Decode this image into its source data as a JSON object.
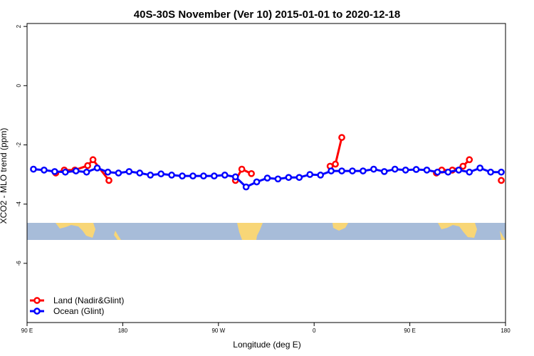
{
  "chart_data": {
    "type": "line",
    "title": "40S-30S November (Ver 10)   2015-01-01 to 2020-12-18",
    "xlabel": "Longitude (deg E)",
    "ylabel": "XCO2 - MLO trend (ppm)",
    "xlim": [
      90,
      540
    ],
    "ylim": [
      -8,
      2.1
    ],
    "x_ticks": [
      {
        "value": 90,
        "label": "90 E"
      },
      {
        "value": 180,
        "label": "180"
      },
      {
        "value": 270,
        "label": "90 W"
      },
      {
        "value": 360,
        "label": "0"
      },
      {
        "value": 450,
        "label": "90 E"
      },
      {
        "value": 540,
        "label": "180"
      }
    ],
    "y_ticks": [
      {
        "value": 2,
        "label": "2"
      },
      {
        "value": 0,
        "label": "0"
      },
      {
        "value": -2,
        "label": "-2"
      },
      {
        "value": -4,
        "label": "-4"
      },
      {
        "value": -6,
        "label": "-6"
      }
    ],
    "legend_position": "bottom-left",
    "series": [
      {
        "name": "Land (Nadir&Glint)",
        "color": "#ff0000",
        "segments": [
          [
            [
              117,
              -2.95
            ],
            [
              125,
              -2.85
            ],
            [
              135,
              -2.85
            ],
            [
              147,
              -2.7
            ],
            [
              152,
              -2.5
            ],
            [
              167,
              -3.2
            ]
          ],
          [
            [
              286,
              -3.2
            ],
            [
              292,
              -2.82
            ],
            [
              301,
              -2.97
            ]
          ],
          [
            [
              375,
              -2.72
            ],
            [
              380,
              -2.65
            ],
            [
              386,
              -1.75
            ]
          ],
          [
            [
              475,
              -2.95
            ],
            [
              480,
              -2.85
            ],
            [
              490,
              -2.85
            ],
            [
              500,
              -2.72
            ],
            [
              506,
              -2.5
            ]
          ],
          [
            [
              536,
              -3.2
            ]
          ]
        ]
      },
      {
        "name": "Ocean (Glint)",
        "color": "#0000ff",
        "segments": [
          [
            [
              96,
              -2.82
            ],
            [
              106,
              -2.85
            ],
            [
              116,
              -2.9
            ],
            [
              126,
              -2.92
            ],
            [
              136,
              -2.88
            ],
            [
              146,
              -2.92
            ],
            [
              156,
              -2.78
            ],
            [
              166,
              -2.92
            ],
            [
              176,
              -2.95
            ],
            [
              186,
              -2.9
            ],
            [
              196,
              -2.95
            ],
            [
              206,
              -3.02
            ],
            [
              216,
              -2.98
            ],
            [
              226,
              -3.02
            ],
            [
              236,
              -3.05
            ],
            [
              246,
              -3.05
            ],
            [
              256,
              -3.05
            ],
            [
              266,
              -3.05
            ],
            [
              276,
              -3.02
            ],
            [
              286,
              -3.08
            ],
            [
              296,
              -3.42
            ],
            [
              306,
              -3.25
            ],
            [
              316,
              -3.12
            ],
            [
              326,
              -3.15
            ],
            [
              336,
              -3.1
            ],
            [
              346,
              -3.1
            ],
            [
              356,
              -3.0
            ],
            [
              366,
              -3.02
            ],
            [
              376,
              -2.88
            ],
            [
              386,
              -2.88
            ],
            [
              396,
              -2.88
            ],
            [
              406,
              -2.88
            ],
            [
              416,
              -2.82
            ],
            [
              426,
              -2.9
            ],
            [
              436,
              -2.82
            ],
            [
              446,
              -2.85
            ],
            [
              456,
              -2.83
            ],
            [
              466,
              -2.85
            ],
            [
              476,
              -2.92
            ],
            [
              486,
              -2.92
            ],
            [
              496,
              -2.85
            ],
            [
              506,
              -2.92
            ],
            [
              516,
              -2.78
            ],
            [
              526,
              -2.92
            ],
            [
              536,
              -2.92
            ]
          ]
        ]
      }
    ]
  }
}
